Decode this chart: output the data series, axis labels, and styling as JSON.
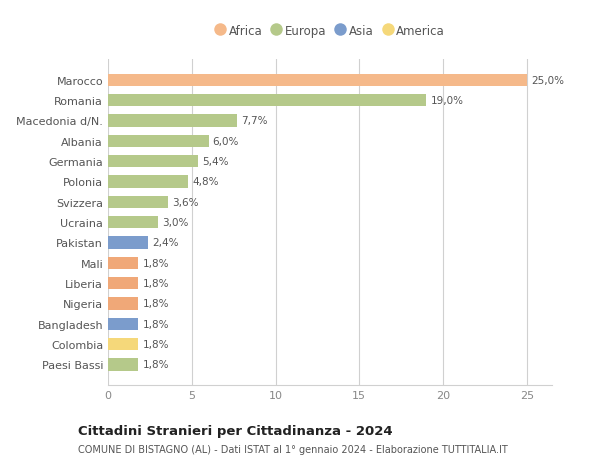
{
  "categories": [
    "Paesi Bassi",
    "Colombia",
    "Bangladesh",
    "Nigeria",
    "Liberia",
    "Mali",
    "Pakistan",
    "Ucraina",
    "Svizzera",
    "Polonia",
    "Germania",
    "Albania",
    "Macedonia d/N.",
    "Romania",
    "Marocco"
  ],
  "values": [
    1.8,
    1.8,
    1.8,
    1.8,
    1.8,
    1.8,
    2.4,
    3.0,
    3.6,
    4.8,
    5.4,
    6.0,
    7.7,
    19.0,
    25.0
  ],
  "colors": [
    "#b5c98a",
    "#f5d87a",
    "#7b9ccc",
    "#f0a878",
    "#f0a878",
    "#f0a878",
    "#7b9ccc",
    "#b5c98a",
    "#b5c98a",
    "#b5c98a",
    "#b5c98a",
    "#b5c98a",
    "#b5c98a",
    "#b5c98a",
    "#f5b98a"
  ],
  "labels": [
    "1,8%",
    "1,8%",
    "1,8%",
    "1,8%",
    "1,8%",
    "1,8%",
    "2,4%",
    "3,0%",
    "3,6%",
    "4,8%",
    "5,4%",
    "6,0%",
    "7,7%",
    "19,0%",
    "25,0%"
  ],
  "legend_items": [
    {
      "label": "Africa",
      "color": "#f5b98a"
    },
    {
      "label": "Europa",
      "color": "#b5c98a"
    },
    {
      "label": "Asia",
      "color": "#7b9ccc"
    },
    {
      "label": "America",
      "color": "#f5d87a"
    }
  ],
  "title": "Cittadini Stranieri per Cittadinanza - 2024",
  "subtitle": "COMUNE DI BISTAGNO (AL) - Dati ISTAT al 1° gennaio 2024 - Elaborazione TUTTITALIA.IT",
  "xlim": [
    0,
    26.5
  ],
  "xticks": [
    0,
    5,
    10,
    15,
    20,
    25
  ],
  "background_color": "#ffffff",
  "grid_color": "#d0d0d0",
  "bar_height": 0.6
}
